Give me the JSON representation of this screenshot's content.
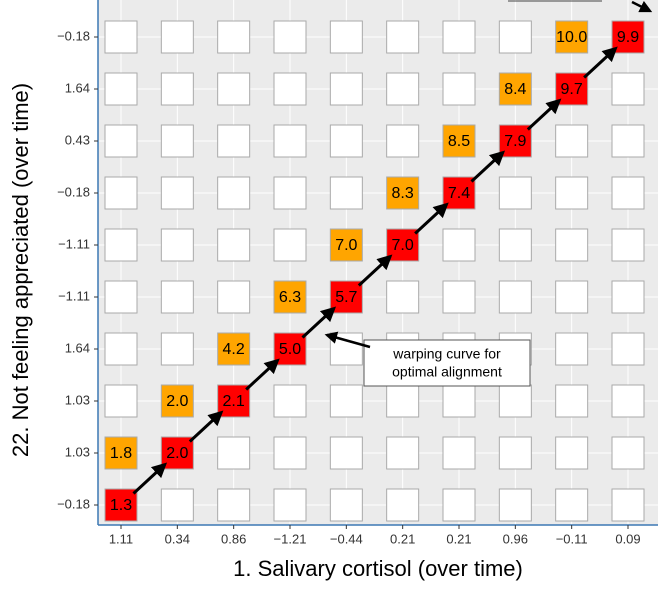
{
  "chart_data": {
    "type": "tile",
    "x_label": "1. Salivary cortisol (over time)",
    "y_label": "22. Not feeling appreciated (over time)",
    "x": [
      "1.11",
      "0.34",
      "0.86",
      "−1.21",
      "−0.44",
      "0.21",
      "0.21",
      "0.96",
      "−0.11",
      "0.09"
    ],
    "y": [
      "−0.18",
      "1.03",
      "1.03",
      "1.64",
      "−1.11",
      "−1.11",
      "−0.18",
      "0.43",
      "1.64",
      "−0.18"
    ],
    "values": [
      [
        1.3,
        null,
        null,
        null,
        null,
        null,
        null,
        null,
        null,
        null
      ],
      [
        1.8,
        2.0,
        null,
        null,
        null,
        null,
        null,
        null,
        null,
        null
      ],
      [
        null,
        2.0,
        2.1,
        null,
        null,
        null,
        null,
        null,
        null,
        null
      ],
      [
        null,
        null,
        4.2,
        5.0,
        null,
        null,
        null,
        null,
        null,
        null
      ],
      [
        null,
        null,
        null,
        6.3,
        5.7,
        null,
        null,
        null,
        null,
        null
      ],
      [
        null,
        null,
        null,
        null,
        7.0,
        7.0,
        null,
        null,
        null,
        null
      ],
      [
        null,
        null,
        null,
        null,
        null,
        8.3,
        7.4,
        null,
        null,
        null
      ],
      [
        null,
        null,
        null,
        null,
        null,
        null,
        8.5,
        7.9,
        null,
        null
      ],
      [
        null,
        null,
        null,
        null,
        null,
        null,
        null,
        8.4,
        9.7,
        null
      ],
      [
        null,
        null,
        null,
        null,
        null,
        null,
        null,
        null,
        10.0,
        9.9
      ]
    ],
    "value_labels": [
      [
        "1.3",
        null,
        null,
        null,
        null,
        null,
        null,
        null,
        null,
        null
      ],
      [
        "1.8",
        "2.0",
        null,
        null,
        null,
        null,
        null,
        null,
        null,
        null
      ],
      [
        null,
        "2.0",
        "2.1",
        null,
        null,
        null,
        null,
        null,
        null,
        null
      ],
      [
        null,
        null,
        "4.2",
        "5.0",
        null,
        null,
        null,
        null,
        null,
        null
      ],
      [
        null,
        null,
        null,
        "6.3",
        "5.7",
        null,
        null,
        null,
        null,
        null
      ],
      [
        null,
        null,
        null,
        null,
        "7.0",
        "7.0",
        null,
        null,
        null,
        null
      ],
      [
        null,
        null,
        null,
        null,
        null,
        "8.3",
        "7.4",
        null,
        null,
        null
      ],
      [
        null,
        null,
        null,
        null,
        null,
        null,
        "8.5",
        "7.9",
        null,
        null
      ],
      [
        null,
        null,
        null,
        null,
        null,
        null,
        null,
        "8.4",
        "9.7",
        null
      ],
      [
        null,
        null,
        null,
        null,
        null,
        null,
        null,
        null,
        "10.0",
        "9.9"
      ]
    ],
    "path_color": "#ff0000",
    "neighbor_color": "#ffa500",
    "annotation": [
      "warping curve for",
      "optimal alignment"
    ]
  }
}
